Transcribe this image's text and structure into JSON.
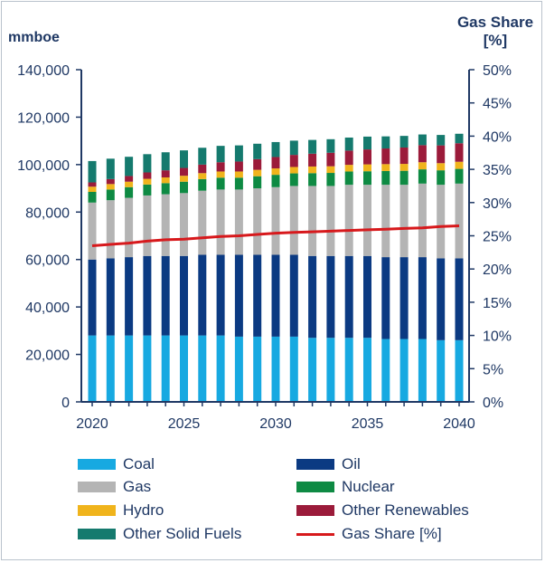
{
  "chart_data": {
    "type": "bar",
    "stacked": true,
    "y_unit_label": "mmboe",
    "y2_label_line1": "Gas Share",
    "y2_label_line2": "[%]",
    "ylim": [
      0,
      140000
    ],
    "y2lim": [
      0,
      50
    ],
    "y_ticks": [
      "140,000",
      "120,000",
      "100,000",
      "80,000",
      "60,000",
      "40,000",
      "20,000",
      "0"
    ],
    "y2_ticks": [
      "50%",
      "45%",
      "40%",
      "35%",
      "30%",
      "25%",
      "20%",
      "15%",
      "10%",
      "5%",
      "0%"
    ],
    "x_tick_labels": [
      "2020",
      "2025",
      "2030",
      "2035",
      "2040"
    ],
    "x": [
      2020,
      2021,
      2022,
      2023,
      2024,
      2025,
      2026,
      2027,
      2028,
      2029,
      2030,
      2031,
      2032,
      2033,
      2034,
      2035,
      2036,
      2037,
      2038,
      2039,
      2040
    ],
    "series": [
      {
        "name": "Coal",
        "color": "#17a9e1",
        "values": [
          28000,
          28000,
          28000,
          28000,
          28000,
          28000,
          28000,
          28000,
          27500,
          27500,
          27500,
          27500,
          27000,
          27000,
          27000,
          27000,
          26500,
          26500,
          26500,
          26000,
          26000
        ]
      },
      {
        "name": "Oil",
        "color": "#0b3a82",
        "values": [
          32000,
          32500,
          33000,
          33500,
          33500,
          33500,
          34000,
          34000,
          34500,
          34500,
          34500,
          34500,
          34500,
          34500,
          34500,
          34500,
          34500,
          34500,
          34500,
          34500,
          34500
        ]
      },
      {
        "name": "Gas",
        "color": "#b4b4b4",
        "values": [
          24000,
          24500,
          25000,
          25500,
          26000,
          26500,
          27000,
          27500,
          27500,
          28000,
          28500,
          29000,
          29500,
          29500,
          30000,
          30000,
          30500,
          30500,
          31000,
          31000,
          31500
        ]
      },
      {
        "name": "Nuclear",
        "color": "#0e8a43",
        "values": [
          4500,
          4500,
          4500,
          4600,
          4700,
          4800,
          4900,
          5000,
          5000,
          5100,
          5200,
          5300,
          5400,
          5500,
          5600,
          5700,
          5800,
          5900,
          6000,
          6100,
          6200
        ]
      },
      {
        "name": "Hydro",
        "color": "#f0b41c",
        "values": [
          2200,
          2300,
          2300,
          2400,
          2400,
          2500,
          2500,
          2600,
          2600,
          2700,
          2700,
          2700,
          2800,
          2800,
          2800,
          2900,
          2900,
          2900,
          3000,
          3000,
          3000
        ]
      },
      {
        "name": "Other Renewables",
        "color": "#9b1b3a",
        "values": [
          1800,
          2100,
          2400,
          2700,
          3000,
          3300,
          3600,
          3900,
          4200,
          4500,
          4800,
          5100,
          5400,
          5700,
          6000,
          6300,
          6600,
          6900,
          7200,
          7500,
          7800
        ]
      },
      {
        "name": "Other Solid Fuels",
        "color": "#157a6e",
        "values": [
          9000,
          8600,
          8100,
          7700,
          7600,
          7400,
          7100,
          6900,
          6800,
          6500,
          6300,
          6000,
          5800,
          5700,
          5500,
          5400,
          5100,
          4900,
          4500,
          4400,
          4000
        ]
      }
    ],
    "line_series": {
      "name": "Gas Share [%]",
      "color": "#d7191c",
      "axis": "y2",
      "values": [
        23.5,
        23.7,
        23.9,
        24.2,
        24.4,
        24.5,
        24.7,
        24.9,
        25.0,
        25.2,
        25.4,
        25.5,
        25.6,
        25.7,
        25.8,
        25.9,
        26.0,
        26.1,
        26.2,
        26.4,
        26.5
      ]
    }
  },
  "legend": [
    {
      "label": "Coal",
      "color": "#17a9e1",
      "kind": "box"
    },
    {
      "label": "Oil",
      "color": "#0b3a82",
      "kind": "box"
    },
    {
      "label": "Gas",
      "color": "#b4b4b4",
      "kind": "box"
    },
    {
      "label": "Nuclear",
      "color": "#0e8a43",
      "kind": "box"
    },
    {
      "label": "Hydro",
      "color": "#f0b41c",
      "kind": "box"
    },
    {
      "label": "Other Renewables",
      "color": "#9b1b3a",
      "kind": "box"
    },
    {
      "label": "Other Solid Fuels",
      "color": "#157a6e",
      "kind": "box"
    },
    {
      "label": "Gas Share [%]",
      "color": "#d7191c",
      "kind": "line"
    }
  ]
}
